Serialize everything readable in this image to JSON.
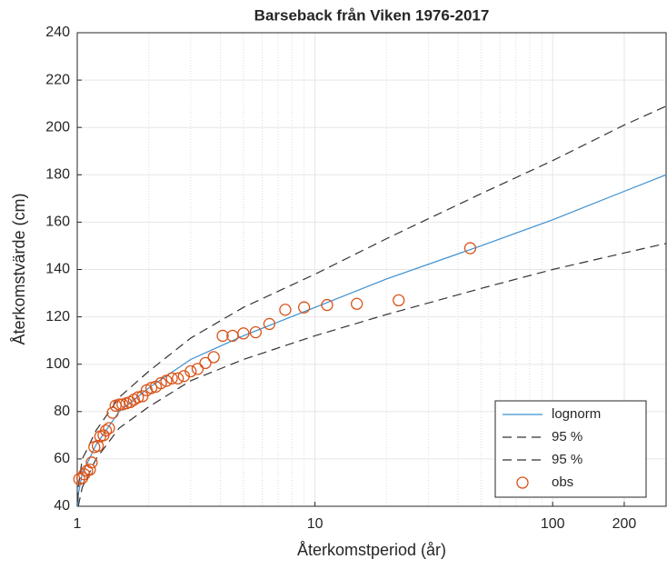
{
  "chart_data": {
    "type": "line",
    "title": "Barseback från Viken 1976-2017",
    "xlabel": "Återkomstperiod (år)",
    "ylabel": "Återkomstvärde (cm)",
    "xscale": "log",
    "xlim": [
      1,
      300
    ],
    "xticks": [
      1,
      10,
      100,
      200
    ],
    "ylim": [
      40,
      240
    ],
    "yticks": [
      40,
      60,
      80,
      100,
      120,
      140,
      160,
      180,
      200,
      220,
      240
    ],
    "grid": true,
    "legend": "lower right",
    "series": [
      {
        "name": "lognorm",
        "color": "#3b8fd0",
        "style": "solid",
        "x": [
          1.005,
          1.01,
          1.05,
          1.1,
          1.2,
          1.5,
          2,
          3,
          5,
          10,
          20,
          50,
          100,
          200,
          300
        ],
        "values": [
          40,
          45,
          54,
          58,
          66,
          80,
          90,
          102,
          112,
          124,
          136,
          150,
          161,
          173,
          180
        ]
      },
      {
        "name": "95 %",
        "color": "#333333",
        "style": "dashed",
        "x": [
          1.005,
          1.01,
          1.05,
          1.1,
          1.2,
          1.5,
          2,
          3,
          5,
          10,
          20,
          50,
          100,
          200,
          300
        ],
        "values": [
          42,
          48,
          60,
          64,
          72,
          86,
          97,
          111,
          124,
          138,
          153,
          172,
          186,
          201,
          209
        ]
      },
      {
        "name": "95 %",
        "color": "#333333",
        "style": "dashed",
        "x": [
          1.01,
          1.05,
          1.1,
          1.2,
          1.5,
          2,
          3,
          5,
          10,
          20,
          50,
          100,
          200,
          300
        ],
        "values": [
          40,
          48,
          52,
          60,
          73,
          82,
          93,
          102,
          112,
          121,
          132,
          140,
          147,
          151
        ]
      },
      {
        "name": "obs",
        "color": "#d95319",
        "style": "marker",
        "x": [
          45,
          22.5,
          15,
          11.25,
          9,
          7.5,
          6.43,
          5.63,
          5,
          4.5,
          4.09,
          3.75,
          3.46,
          3.21,
          3,
          2.81,
          2.65,
          2.5,
          2.37,
          2.25,
          2.14,
          2.05,
          1.96,
          1.88,
          1.8,
          1.73,
          1.67,
          1.61,
          1.55,
          1.5,
          1.45,
          1.41,
          1.36,
          1.32,
          1.29,
          1.25,
          1.22,
          1.18,
          1.15,
          1.13,
          1.1,
          1.07,
          1.05,
          1.02
        ],
        "values": [
          149,
          127,
          125.5,
          125,
          124,
          123,
          117,
          113.5,
          113,
          112,
          112,
          103,
          100.5,
          98,
          97,
          95,
          94,
          94,
          93,
          92,
          90.5,
          90,
          89,
          86.5,
          86,
          85,
          84,
          83.5,
          83,
          83,
          82.5,
          79.5,
          73,
          72,
          70,
          69.5,
          65.5,
          65,
          58.5,
          55.5,
          55,
          53.5,
          52,
          51.5
        ]
      }
    ]
  }
}
